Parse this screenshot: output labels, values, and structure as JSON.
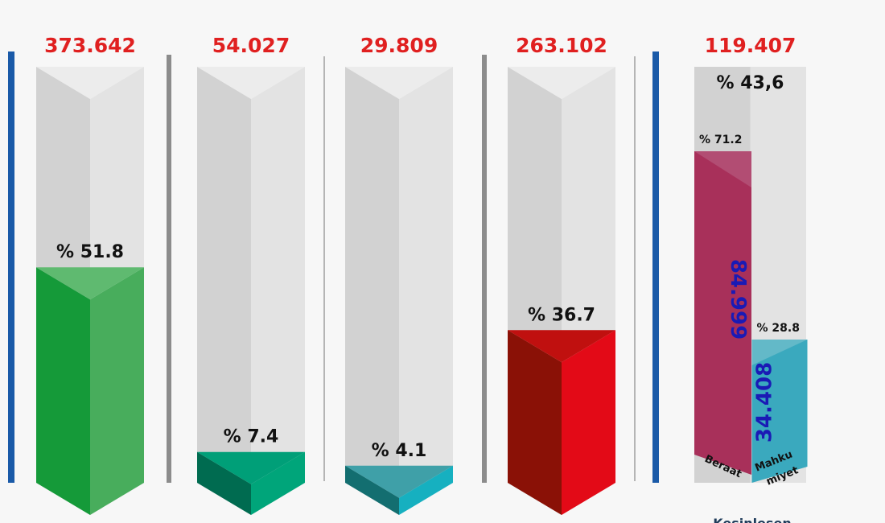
{
  "chart_data": {
    "type": "bar",
    "title": "",
    "xlabel": "",
    "ylabel": "",
    "ylim": [
      0,
      100
    ],
    "colors": {
      "track": "#e3e3e3",
      "track_dark": "#d2d2d2",
      "separator_blue": "#1a5aa8",
      "separator_gray": "#8c8c8c",
      "separator_thin": "#b5b5b5",
      "totals": "#e02020",
      "vertical_numbers": "#1a1ab5"
    },
    "bars": [
      {
        "id": "bar-1",
        "total_label": "373.642",
        "percent_label": "% 51.8",
        "percent": 51.8,
        "color_front": "#159a39",
        "color_side": "#48ad5c",
        "color_top": "#5fba70"
      },
      {
        "id": "bar-2",
        "total_label": "54.027",
        "percent_label": "% 7.4",
        "percent": 7.4,
        "color_front": "#006b50",
        "color_side": "#00a57a",
        "color_top": "#009f78"
      },
      {
        "id": "bar-3",
        "total_label": "29.809",
        "percent_label": "% 4.1",
        "percent": 4.1,
        "color_front": "#136e70",
        "color_side": "#16b0c0",
        "color_top": "#3fa0a8"
      },
      {
        "id": "bar-4",
        "total_label": "263.102",
        "percent_label": "% 36.7",
        "percent": 36.7,
        "color_front": "#8a1106",
        "color_side": "#e30a17",
        "color_top": "#c0100f"
      }
    ],
    "split_bar": {
      "id": "bar-5",
      "total_label": "119.407",
      "percent_label": "% 43,6",
      "percent": 43.6,
      "parts": [
        {
          "name": "Beraat",
          "value_label": "84.999",
          "percent_label": "% 71.2",
          "percent": 71.2,
          "color_front": "#a8305a",
          "color_top": "#b24d73"
        },
        {
          "name": "Mahku miyet",
          "value_label": "34.408",
          "percent_label": "% 28.8",
          "percent": 28.8,
          "color_front": "#3aa9be",
          "color_top": "#63b9c8"
        }
      ]
    },
    "caption": "Kesinleşen"
  }
}
